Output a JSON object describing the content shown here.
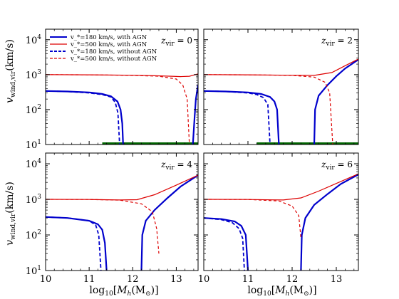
{
  "figure": {
    "ylabel": "v_wind,vir (km/s)",
    "xlabel": "log10[M_h (M_⊙)]"
  },
  "legend": [
    {
      "label": "v_*=180 km/s, with AGN",
      "color": "#0000cc",
      "style": "solid"
    },
    {
      "label": "v_*=500 km/s, with AGN",
      "color": "#dd0000",
      "style": "solid"
    },
    {
      "label": "v_*=180 km/s, without AGN",
      "color": "#0000cc",
      "style": "dashed"
    },
    {
      "label": "v_*=500 km/s, without AGN",
      "color": "#dd0000",
      "style": "dashed"
    }
  ],
  "colors": {
    "blue": "#0000cc",
    "red": "#dd0000",
    "green": "#006400"
  },
  "chart_data": [
    {
      "type": "line",
      "panel": "z_vir=0",
      "zlabel": "z_vir = 0",
      "xlim": [
        10,
        13.5
      ],
      "ylim": [
        10,
        20000
      ],
      "yscale": "log",
      "xticks": [
        "10",
        "11",
        "12",
        "13"
      ],
      "yticks": [
        "10^1",
        "10^2",
        "10^3",
        "10^4"
      ],
      "series": [
        {
          "style": "blue-solid",
          "points": [
            [
              10,
              340
            ],
            [
              10.5,
              330
            ],
            [
              11,
              310
            ],
            [
              11.3,
              280
            ],
            [
              11.5,
              240
            ],
            [
              11.65,
              170
            ],
            [
              11.72,
              100
            ],
            [
              11.76,
              40
            ],
            [
              11.78,
              10
            ]
          ]
        },
        {
          "style": "blue-solid",
          "points": [
            [
              13.38,
              10
            ],
            [
              13.42,
              60
            ],
            [
              13.45,
              200
            ],
            [
              13.5,
              520
            ]
          ]
        },
        {
          "style": "blue-dashed",
          "points": [
            [
              10,
              340
            ],
            [
              10.5,
              330
            ],
            [
              11,
              300
            ],
            [
              11.3,
              270
            ],
            [
              11.5,
              230
            ],
            [
              11.6,
              160
            ],
            [
              11.66,
              80
            ],
            [
              11.7,
              10
            ]
          ]
        },
        {
          "style": "red-solid",
          "points": [
            [
              10,
              1000
            ],
            [
              11,
              990
            ],
            [
              12,
              960
            ],
            [
              12.5,
              930
            ],
            [
              12.9,
              900
            ],
            [
              13.1,
              880
            ],
            [
              13.3,
              900
            ],
            [
              13.5,
              1050
            ]
          ]
        },
        {
          "style": "red-dashed",
          "points": [
            [
              10,
              1000
            ],
            [
              11,
              990
            ],
            [
              12,
              950
            ],
            [
              12.6,
              900
            ],
            [
              13.0,
              750
            ],
            [
              13.15,
              500
            ],
            [
              13.25,
              200
            ],
            [
              13.3,
              10
            ]
          ]
        }
      ],
      "green_band": [
        [
          11.3,
          13.5
        ]
      ]
    },
    {
      "type": "line",
      "panel": "z_vir=2",
      "zlabel": "z_vir = 2",
      "xlim": [
        10,
        13.5
      ],
      "ylim": [
        10,
        20000
      ],
      "yscale": "log",
      "xticks": [
        "10",
        "11",
        "12",
        "13"
      ],
      "yticks": [
        "10^1",
        "10^2",
        "10^3",
        "10^4"
      ],
      "series": [
        {
          "style": "blue-solid",
          "points": [
            [
              10,
              340
            ],
            [
              10.5,
              330
            ],
            [
              11,
              310
            ],
            [
              11.3,
              280
            ],
            [
              11.5,
              230
            ],
            [
              11.6,
              170
            ],
            [
              11.66,
              100
            ],
            [
              11.7,
              10
            ]
          ]
        },
        {
          "style": "blue-solid",
          "points": [
            [
              12.5,
              10
            ],
            [
              12.52,
              100
            ],
            [
              12.6,
              250
            ],
            [
              12.8,
              500
            ],
            [
              13.0,
              900
            ],
            [
              13.2,
              1500
            ],
            [
              13.5,
              2700
            ]
          ]
        },
        {
          "style": "blue-dashed",
          "points": [
            [
              10,
              340
            ],
            [
              10.5,
              330
            ],
            [
              11,
              300
            ],
            [
              11.2,
              270
            ],
            [
              11.35,
              220
            ],
            [
              11.45,
              140
            ],
            [
              11.5,
              10
            ]
          ]
        },
        {
          "style": "red-solid",
          "points": [
            [
              10,
              1000
            ],
            [
              11,
              990
            ],
            [
              12,
              960
            ],
            [
              12.5,
              950
            ],
            [
              12.9,
              1150
            ],
            [
              13.2,
              1800
            ],
            [
              13.5,
              2800
            ]
          ]
        },
        {
          "style": "red-dashed",
          "points": [
            [
              10,
              1000
            ],
            [
              11,
              990
            ],
            [
              12,
              950
            ],
            [
              12.5,
              850
            ],
            [
              12.75,
              600
            ],
            [
              12.85,
              300
            ],
            [
              12.92,
              10
            ]
          ]
        }
      ],
      "green_band": [
        [
          11.2,
          13.5
        ]
      ]
    },
    {
      "type": "line",
      "panel": "z_vir=4",
      "zlabel": "z_vir = 4",
      "xlim": [
        10,
        13.5
      ],
      "ylim": [
        10,
        20000
      ],
      "yscale": "log",
      "xticks": [
        "10",
        "11",
        "12",
        "13"
      ],
      "yticks": [
        "10^1",
        "10^2",
        "10^3",
        "10^4"
      ],
      "series": [
        {
          "style": "blue-solid",
          "points": [
            [
              10,
              320
            ],
            [
              10.5,
              300
            ],
            [
              11,
              250
            ],
            [
              11.2,
              200
            ],
            [
              11.3,
              140
            ],
            [
              11.36,
              60
            ],
            [
              11.4,
              10
            ]
          ]
        },
        {
          "style": "blue-solid",
          "points": [
            [
              12.2,
              10
            ],
            [
              12.22,
              100
            ],
            [
              12.3,
              250
            ],
            [
              12.5,
              500
            ],
            [
              12.8,
              1100
            ],
            [
              13.1,
              2300
            ],
            [
              13.5,
              4800
            ]
          ]
        },
        {
          "style": "blue-dashed",
          "points": [
            [
              10,
              320
            ],
            [
              10.5,
              300
            ],
            [
              11,
              250
            ],
            [
              11.15,
              190
            ],
            [
              11.22,
              100
            ],
            [
              11.27,
              10
            ]
          ]
        },
        {
          "style": "red-solid",
          "points": [
            [
              10,
              1000
            ],
            [
              11,
              990
            ],
            [
              11.7,
              960
            ],
            [
              12.1,
              980
            ],
            [
              12.5,
              1350
            ],
            [
              13.0,
              2500
            ],
            [
              13.5,
              4800
            ]
          ]
        },
        {
          "style": "red-dashed",
          "points": [
            [
              10,
              1000
            ],
            [
              11,
              990
            ],
            [
              11.7,
              950
            ],
            [
              12.2,
              750
            ],
            [
              12.45,
              450
            ],
            [
              12.55,
              150
            ],
            [
              12.6,
              30
            ]
          ]
        }
      ],
      "green_band": []
    },
    {
      "type": "line",
      "panel": "z_vir=6",
      "zlabel": "z_vir = 6",
      "xlim": [
        10,
        13.5
      ],
      "ylim": [
        10,
        20000
      ],
      "yscale": "log",
      "xticks": [
        "10",
        "11",
        "12",
        "13"
      ],
      "yticks": [
        "10^1",
        "10^2",
        "10^3",
        "10^4"
      ],
      "series": [
        {
          "style": "blue-solid",
          "points": [
            [
              10,
              300
            ],
            [
              10.4,
              280
            ],
            [
              10.7,
              240
            ],
            [
              10.85,
              180
            ],
            [
              10.95,
              100
            ],
            [
              11.0,
              10
            ]
          ]
        },
        {
          "style": "blue-solid",
          "points": [
            [
              12.2,
              10
            ],
            [
              12.22,
              100
            ],
            [
              12.3,
              300
            ],
            [
              12.5,
              700
            ],
            [
              12.8,
              1400
            ],
            [
              13.1,
              2700
            ],
            [
              13.5,
              5000
            ]
          ]
        },
        {
          "style": "blue-dashed",
          "points": [
            [
              10,
              300
            ],
            [
              10.4,
              270
            ],
            [
              10.65,
              220
            ],
            [
              10.8,
              150
            ],
            [
              10.88,
              80
            ],
            [
              10.92,
              10
            ]
          ]
        },
        {
          "style": "red-solid",
          "points": [
            [
              10,
              1000
            ],
            [
              11,
              990
            ],
            [
              11.8,
              960
            ],
            [
              12.2,
              1100
            ],
            [
              12.6,
              1700
            ],
            [
              13.0,
              2800
            ],
            [
              13.5,
              5200
            ]
          ]
        },
        {
          "style": "red-dashed",
          "points": [
            [
              10,
              1000
            ],
            [
              11,
              990
            ],
            [
              11.7,
              900
            ],
            [
              12.0,
              650
            ],
            [
              12.15,
              350
            ],
            [
              12.2,
              80
            ]
          ]
        }
      ],
      "green_band": []
    }
  ]
}
